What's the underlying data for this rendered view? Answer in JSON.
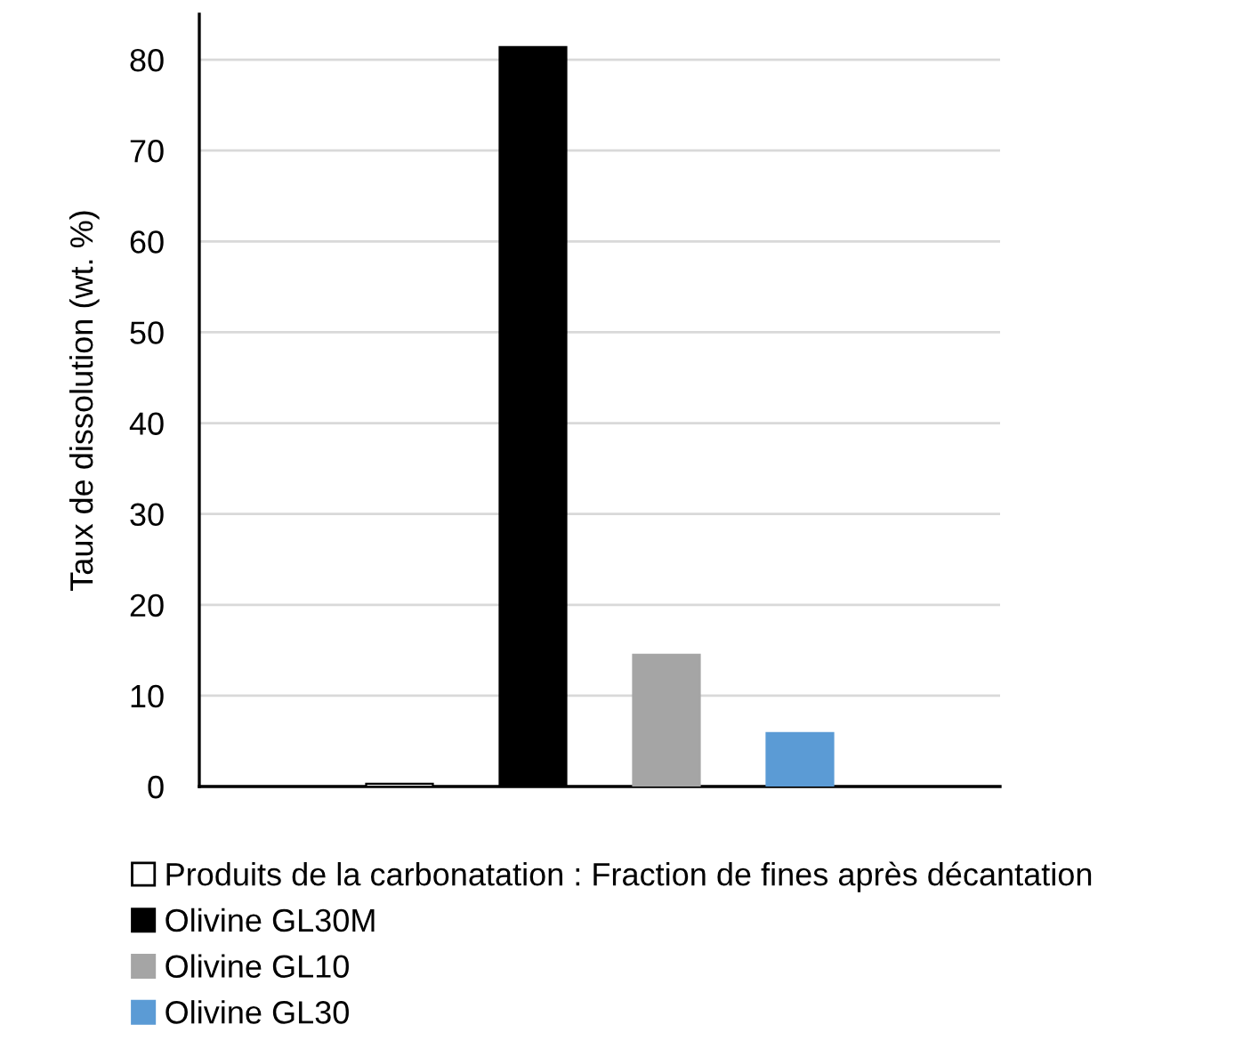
{
  "chart_data": {
    "type": "bar",
    "ylabel": "Taux de dissolution (wt. %)",
    "categories": [
      null
    ],
    "series": [
      {
        "name": "Produits de la carbonatation : Fraction de fines après décantation",
        "color": "#ffffff",
        "values": [
          0.3
        ]
      },
      {
        "name": "Olivine GL30M",
        "color": "#000000",
        "values": [
          81.4
        ]
      },
      {
        "name": "Olivine GL10",
        "color": "#a5a5a5",
        "values": [
          14.5
        ]
      },
      {
        "name": "Olivine GL30",
        "color": "#5b9bd5",
        "values": [
          5.9
        ]
      }
    ],
    "ylim": [
      0,
      85
    ],
    "yticks": [
      0,
      10,
      20,
      30,
      40,
      50,
      60,
      70,
      80
    ],
    "grid": "y",
    "legend": "bottom"
  }
}
